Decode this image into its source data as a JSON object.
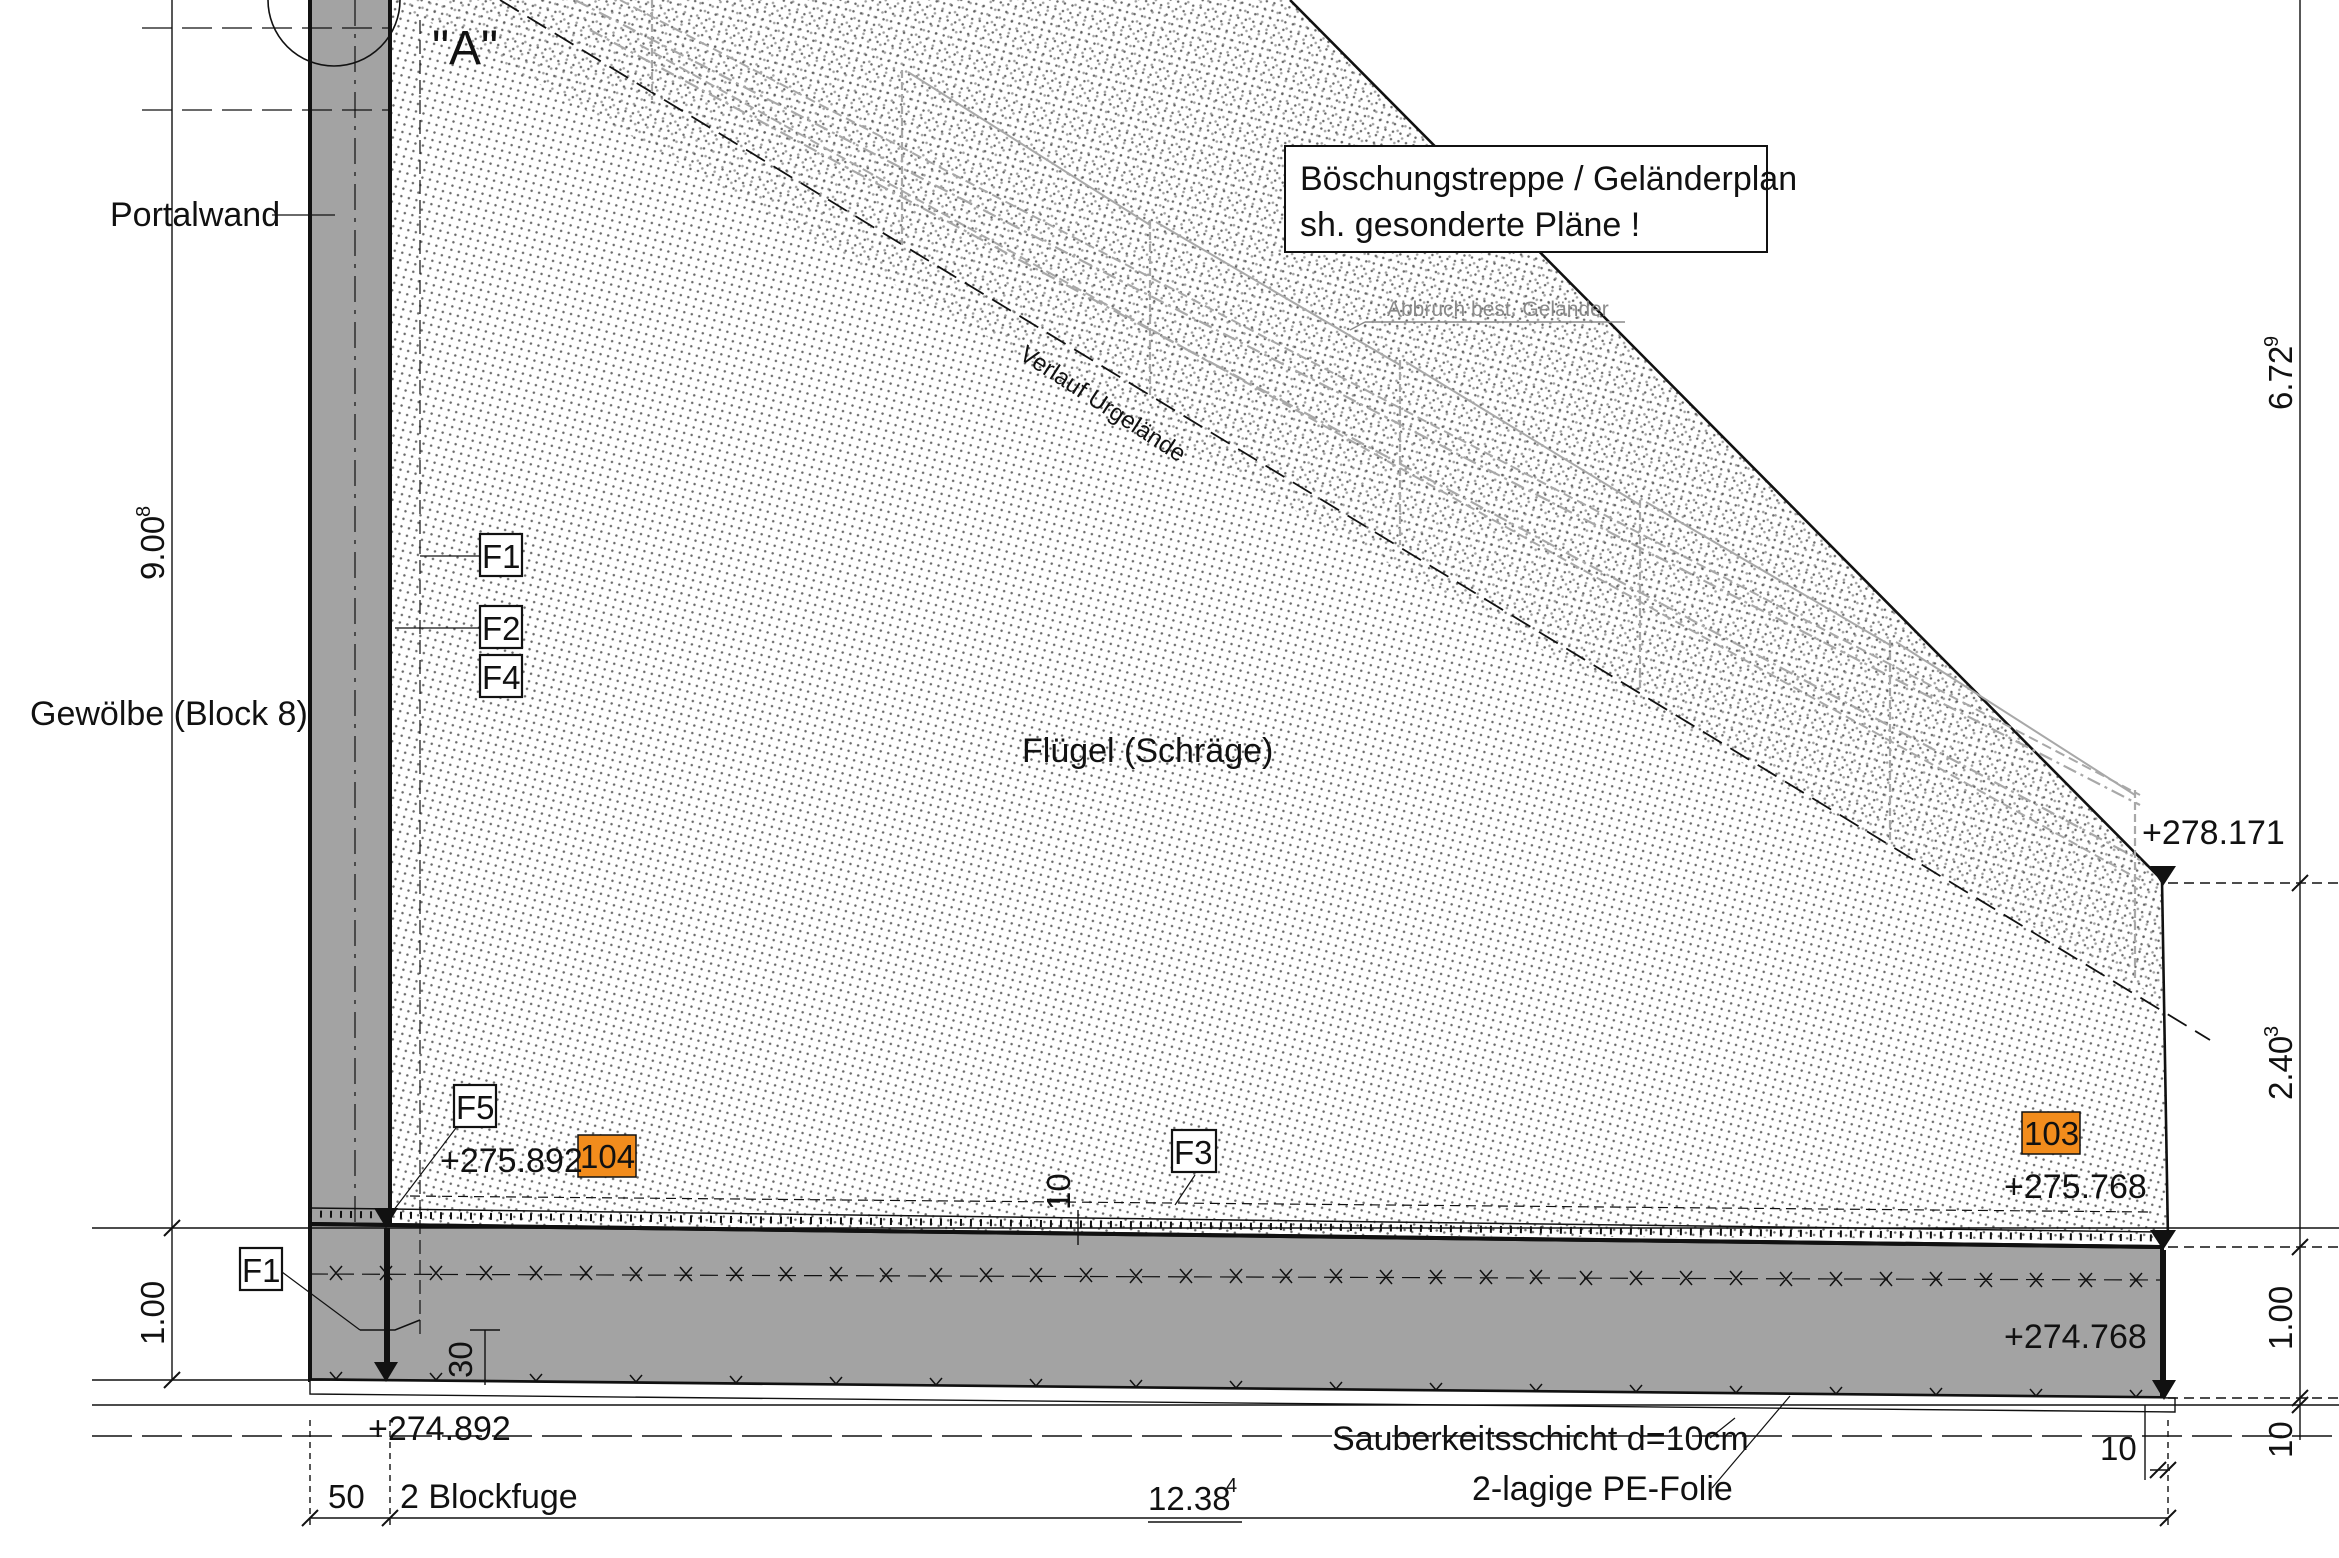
{
  "labels": {
    "section_mark": "\"A\"",
    "portal_wall": "Portalwand",
    "vault": "Gewölbe (Block 8)",
    "wing": "Flügel (Schräge)",
    "terrain": "Verlauf Urgelände",
    "demolition": "Abbruch best. Geländer",
    "note_line1": "Böschungstreppe / Geländerplan",
    "note_line2": "sh. gesonderte Pläne !",
    "blinding": "Sauberkeitsschicht d=10cm",
    "foil": "2-lagige PE-Folie",
    "block_joint": "2 Blockfuge"
  },
  "tags": {
    "f1_upper": "F1",
    "f2": "F2",
    "f4": "F4",
    "f5": "F5",
    "f3": "F3",
    "f1_lower": "F1",
    "n104": "104",
    "n103": "103"
  },
  "levels": {
    "top_right": "+278.171",
    "left_mid": "+275.892",
    "right_mid": "+275.768",
    "right_base": "+274.768",
    "left_base": "+274.892"
  },
  "dimensions": {
    "left_height_main": "9.00",
    "left_height_main_sup": "8",
    "left_height_base": "1.00",
    "right_height_top": "6.72",
    "right_height_top_sup": "9",
    "right_height_mid": "2.40",
    "right_height_mid_sup": "3",
    "right_height_base": "1.00",
    "right_height_blinding": "10",
    "recess_30": "30",
    "recess_10": "10",
    "bottom_50": "50",
    "bottom_total": "12.38",
    "bottom_total_sup": "4",
    "bottom_10": "10"
  },
  "colors": {
    "concrete_fill": "#a3a3a3",
    "tag_orange": "#f28c1c",
    "ghost_line": "#a8a8a8"
  }
}
